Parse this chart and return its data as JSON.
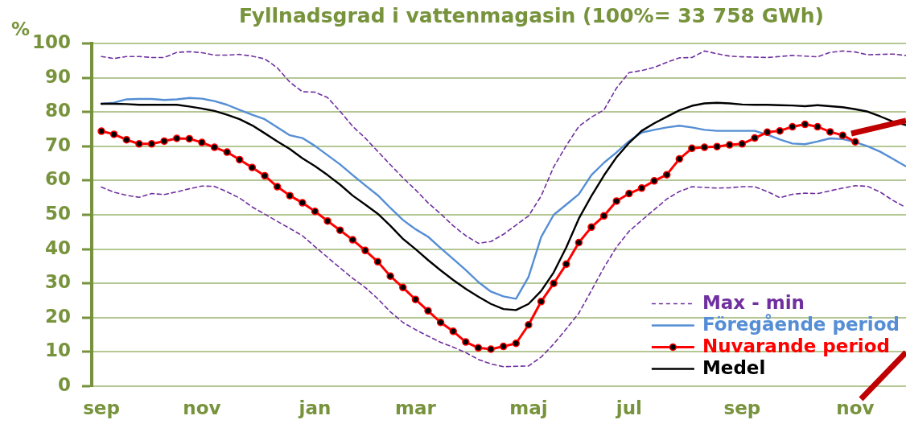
{
  "chart_data": {
    "type": "line",
    "title": "Fyllnadsgrad i vattenmagasin (100%= 33 758 GWh)",
    "ylabel": "%",
    "categories": [
      "sep",
      null,
      null,
      null,
      null,
      null,
      null,
      null,
      "nov",
      null,
      null,
      null,
      null,
      null,
      null,
      null,
      null,
      "jan",
      null,
      null,
      null,
      null,
      null,
      null,
      null,
      "mar",
      null,
      null,
      null,
      null,
      null,
      null,
      null,
      null,
      "maj",
      null,
      null,
      null,
      null,
      null,
      null,
      null,
      "jul",
      null,
      null,
      null,
      null,
      null,
      null,
      null,
      null,
      "sep",
      null,
      null,
      null,
      null,
      null,
      null,
      null,
      null,
      "nov",
      null,
      null,
      null,
      null
    ],
    "ylim": [
      0,
      100
    ],
    "yticks": [
      0,
      10,
      20,
      30,
      40,
      50,
      60,
      70,
      80,
      90,
      100
    ],
    "grid": "y",
    "legend": "bottom right",
    "marker": "none",
    "line_style": "solid",
    "series": [
      {
        "name": "Max - min",
        "color": "#7030a0",
        "line_style": "dashed",
        "values": [
          96.2,
          95.6,
          96.2,
          96.2,
          95.9,
          95.9,
          97.4,
          97.6,
          97.3,
          96.6,
          96.6,
          96.8,
          96.3,
          95.5,
          92.9,
          88.7,
          85.9,
          85.8,
          84.2,
          80.2,
          75.8,
          72.4,
          68.5,
          64.6,
          60.8,
          57.3,
          53.5,
          50.3,
          46.8,
          43.9,
          41.7,
          42.2,
          44.3,
          47.0,
          49.7,
          55.5,
          64.0,
          70.2,
          75.8,
          78.5,
          80.6,
          87.0,
          91.5,
          92.1,
          93.0,
          94.5,
          95.8,
          95.9,
          97.8,
          97.0,
          96.3,
          96.1,
          96.0,
          95.9,
          96.2,
          96.5,
          96.3,
          96.1,
          97.4,
          97.8,
          97.5,
          96.7,
          96.8,
          96.9,
          96.5
        ]
      },
      {
        "color": "#7030a0",
        "line_style": "dashed",
        "values": [
          58.1,
          56.6,
          55.7,
          55.1,
          56.2,
          55.9,
          56.7,
          57.6,
          58.4,
          58.3,
          56.7,
          54.9,
          52.3,
          50.2,
          48.1,
          46.0,
          43.9,
          40.7,
          37.6,
          34.5,
          31.5,
          28.8,
          25.5,
          21.7,
          18.6,
          16.5,
          14.6,
          12.8,
          11.4,
          9.8,
          7.8,
          6.5,
          5.7,
          5.8,
          5.9,
          8.5,
          12.3,
          16.7,
          21.3,
          27.9,
          34.6,
          40.6,
          45.2,
          48.4,
          51.5,
          54.6,
          56.8,
          58.2,
          58.0,
          57.8,
          57.9,
          58.2,
          58.2,
          56.8,
          55.0,
          56.0,
          56.3,
          56.2,
          57.0,
          57.8,
          58.5,
          58.3,
          56.6,
          54.2,
          52.2
        ]
      },
      {
        "name": "Föregående period",
        "color": "#558ed5",
        "values": [
          82.4,
          82.7,
          83.7,
          83.8,
          83.8,
          83.5,
          83.7,
          84.1,
          83.9,
          83.2,
          82.1,
          80.6,
          79.2,
          77.9,
          75.5,
          73.2,
          72.4,
          70.1,
          67.4,
          64.7,
          61.6,
          58.6,
          55.7,
          52.0,
          48.5,
          45.8,
          43.6,
          40.3,
          37.1,
          33.9,
          30.4,
          27.6,
          26.2,
          25.5,
          31.9,
          43.5,
          50.0,
          53.0,
          56.0,
          61.6,
          65.2,
          68.2,
          71.5,
          74.0,
          74.8,
          75.5,
          76.0,
          75.5,
          74.8,
          74.5,
          74.5,
          74.5,
          74.5,
          73.4,
          72.0,
          70.8,
          70.6,
          71.4,
          72.3,
          72.1,
          71.2,
          70.0,
          68.4,
          66.3,
          64.2
        ]
      },
      {
        "name": "Nuvarande period",
        "color": "#ff0000",
        "marker": "circle",
        "values": [
          74.4,
          73.5,
          71.9,
          70.7,
          70.7,
          71.5,
          72.3,
          72.2,
          71.1,
          69.7,
          68.3,
          66.1,
          63.8,
          61.4,
          58.2,
          55.6,
          53.5,
          51.0,
          48.2,
          45.5,
          42.7,
          39.6,
          36.3,
          32.1,
          28.8,
          25.3,
          22.0,
          18.6,
          16.0,
          12.9,
          11.2,
          10.8,
          11.6,
          12.5,
          17.9,
          24.7,
          30.0,
          35.6,
          41.9,
          46.4,
          49.7,
          54.0,
          56.2,
          57.8,
          59.9,
          61.7,
          66.3,
          69.4,
          69.7,
          69.9,
          70.4,
          70.7,
          72.4,
          74.1,
          74.5,
          75.7,
          76.4,
          75.7,
          74.2,
          73.2,
          71.3,
          null,
          null,
          null,
          null
        ]
      },
      {
        "name": "Medel",
        "color": "#000000",
        "values": [
          82.4,
          82.4,
          82.3,
          82.1,
          82.1,
          82.1,
          82.1,
          81.6,
          81.0,
          80.3,
          79.2,
          77.9,
          76.1,
          73.8,
          71.4,
          69.2,
          66.5,
          64.2,
          61.6,
          58.8,
          55.6,
          53.0,
          50.3,
          46.8,
          43.0,
          40.0,
          36.8,
          33.8,
          31.0,
          28.4,
          26.1,
          24.0,
          22.5,
          22.2,
          24.0,
          27.8,
          33.2,
          40.5,
          48.9,
          55.5,
          61.5,
          66.8,
          71.0,
          74.5,
          76.7,
          78.6,
          80.5,
          81.8,
          82.5,
          82.7,
          82.5,
          82.2,
          82.1,
          82.1,
          82.0,
          81.9,
          81.7,
          82.0,
          81.7,
          81.4,
          80.8,
          80.1,
          78.7,
          77.2,
          76.2
        ]
      }
    ]
  }
}
